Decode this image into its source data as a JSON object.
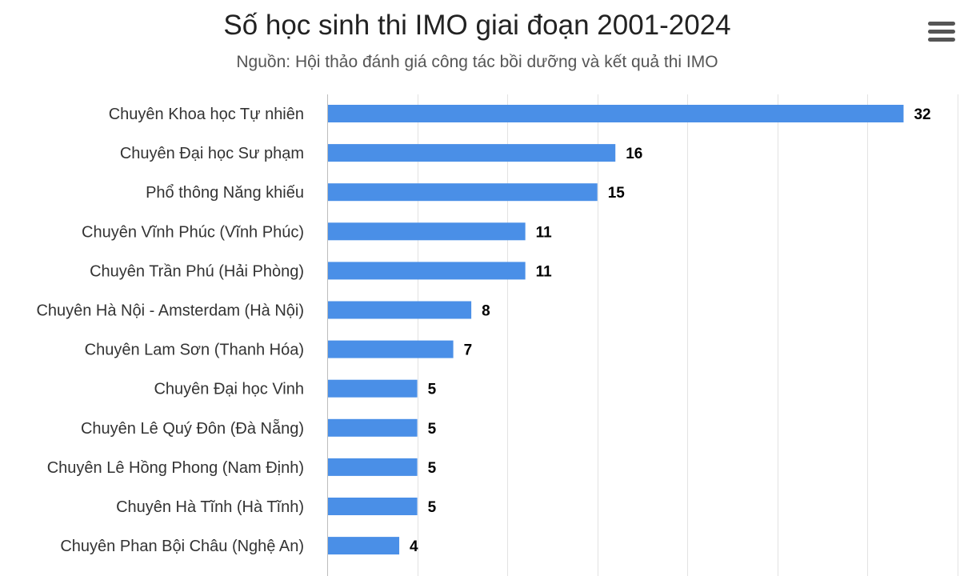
{
  "chart_data": {
    "type": "bar",
    "orientation": "horizontal",
    "title": "Số học sinh thi IMO giai đoạn 2001-2024",
    "subtitle": "Nguồn: Hội thảo đánh giá công tác bồi dưỡng và kết quả thi IMO",
    "xlabel": "",
    "ylabel": "",
    "categories": [
      "Chuyên Khoa học Tự nhiên",
      "Chuyên Đại học Sư phạm",
      "Phổ thông Năng khiếu",
      "Chuyên Vĩnh Phúc (Vĩnh Phúc)",
      "Chuyên Trần Phú (Hải Phòng)",
      "Chuyên Hà Nội - Amsterdam (Hà Nội)",
      "Chuyên Lam Sơn (Thanh Hóa)",
      "Chuyên Đại học Vinh",
      "Chuyên Lê Quý Đôn (Đà Nẵng)",
      "Chuyên Lê Hồng Phong (Nam Định)",
      "Chuyên Hà Tĩnh (Hà Tĩnh)",
      "Chuyên Phan Bội Châu (Nghệ An)"
    ],
    "values": [
      32,
      16,
      15,
      11,
      11,
      8,
      7,
      5,
      5,
      5,
      5,
      4
    ],
    "xlim": [
      0,
      35
    ],
    "grid_step": 5,
    "grid": true,
    "data_labels": true,
    "legend": "none",
    "bar_color": "#4a8fe7",
    "grid_color": "#e3e3e3"
  },
  "menu": {
    "icon": "hamburger-menu-icon"
  }
}
